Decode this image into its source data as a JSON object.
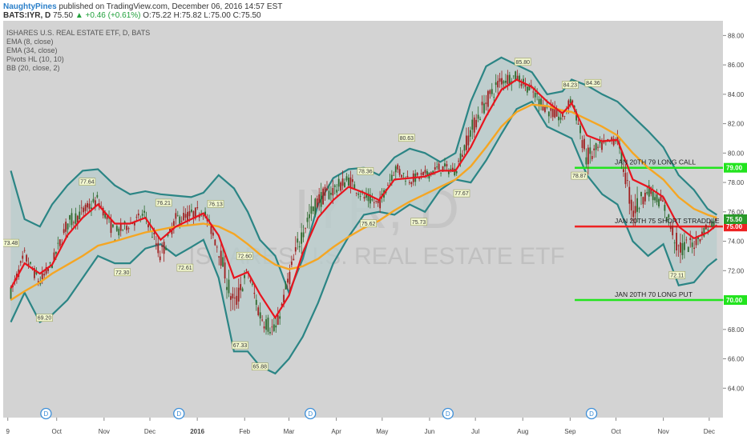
{
  "header": {
    "author": "NaughtyPines",
    "published": "published on TradingView.com, December 06, 2016 14:57 EST",
    "symbol": "BATS:IYR, D",
    "last": "75.50",
    "change": "▲ +0.46 (+0.61%)",
    "ohlc": "O:75.22 H:75.82 L:75.00 C:75.50"
  },
  "legend": {
    "title": "ISHARES U.S. REAL ESTATE ETF, D, BATS",
    "lines": [
      "EMA (8, close)",
      "EMA (34, close)",
      "Pivots HL (10, 10)",
      "BB (20, close, 2)"
    ]
  },
  "watermark": {
    "symbol": "IYR, D",
    "name": "ISHARES U.S. REAL ESTATE ETF"
  },
  "colors": {
    "plot_bg": "#d3d3d3",
    "bb_band": "#2b8585",
    "bb_fill": "#b8cccc",
    "ema8": "#e8141e",
    "ema34": "#f5a623",
    "candle_up": "#2f6b2f",
    "candle_down": "#a02020",
    "level_green": "#22e41e",
    "level_red": "#ee2222",
    "pivot_fill": "#f2f7d0",
    "event_marker": "#3d8fd8"
  },
  "chart_data": {
    "type": "candlestick",
    "ylim": [
      62,
      89
    ],
    "y_ticks": [
      "88.00",
      "86.00",
      "84.00",
      "82.00",
      "80.00",
      "78.00",
      "76.00",
      "74.00",
      "72.00",
      "70.00",
      "68.00",
      "66.00",
      "64.00"
    ],
    "x_ticks": [
      "9",
      "Oct",
      "Nov",
      "Dec",
      "2016",
      "Feb",
      "Mar",
      "Apr",
      "May",
      "Jun",
      "Jul",
      "Aug",
      "Sep",
      "Oct",
      "Nov",
      "Dec"
    ],
    "close_path": {
      "x": [
        "2015-09-01",
        "2015-09-10",
        "2015-09-20",
        "2015-09-28",
        "2015-10-08",
        "2015-10-18",
        "2015-10-28",
        "2015-11-08",
        "2015-11-18",
        "2015-11-28",
        "2015-12-08",
        "2015-12-18",
        "2015-12-28",
        "2016-01-05",
        "2016-01-15",
        "2016-01-25",
        "2016-02-03",
        "2016-02-11",
        "2016-02-21",
        "2016-03-01",
        "2016-03-10",
        "2016-03-20",
        "2016-03-30",
        "2016-04-09",
        "2016-04-19",
        "2016-04-29",
        "2016-05-09",
        "2016-05-19",
        "2016-05-29",
        "2016-06-08",
        "2016-06-18",
        "2016-06-28",
        "2016-07-08",
        "2016-07-18",
        "2016-07-28",
        "2016-08-07",
        "2016-08-17",
        "2016-08-27",
        "2016-09-02",
        "2016-09-12",
        "2016-09-22",
        "2016-10-02",
        "2016-10-12",
        "2016-10-22",
        "2016-11-01",
        "2016-11-11",
        "2016-11-21",
        "2016-11-30",
        "2016-12-06"
      ],
      "y": [
        70.5,
        73.0,
        71.2,
        72.5,
        75.2,
        76.0,
        76.8,
        74.5,
        75.2,
        75.8,
        73.0,
        75.5,
        75.8,
        76.1,
        73.5,
        69.5,
        72.0,
        69.0,
        67.8,
        71.5,
        74.8,
        76.8,
        77.5,
        78.2,
        77.0,
        76.5,
        79.0,
        78.2,
        78.5,
        79.0,
        78.8,
        81.5,
        83.5,
        85.0,
        85.2,
        84.2,
        83.0,
        82.3,
        83.8,
        79.6,
        80.5,
        81.0,
        76.0,
        77.5,
        76.5,
        73.5,
        73.8,
        75.0,
        75.5
      ]
    },
    "candle_ranges": [
      {
        "from": "2015-09-01",
        "to": "2015-09-28",
        "low": 69.5,
        "high": 74.0
      },
      {
        "from": "2015-10-01",
        "to": "2015-10-31",
        "low": 71.5,
        "high": 77.6
      },
      {
        "from": "2015-11-01",
        "to": "2015-11-30",
        "low": 72.3,
        "high": 76.5
      },
      {
        "from": "2015-12-01",
        "to": "2015-12-31",
        "low": 72.6,
        "high": 76.5
      },
      {
        "from": "2016-01-01",
        "to": "2016-01-31",
        "low": 68.5,
        "high": 76.1
      },
      {
        "from": "2016-02-01",
        "to": "2016-02-29",
        "low": 65.9,
        "high": 72.5
      },
      {
        "from": "2016-03-01",
        "to": "2016-03-31",
        "low": 70.0,
        "high": 78.0
      },
      {
        "from": "2016-04-01",
        "to": "2016-04-30",
        "low": 75.6,
        "high": 79.0
      },
      {
        "from": "2016-05-01",
        "to": "2016-05-31",
        "low": 75.7,
        "high": 80.6
      },
      {
        "from": "2016-06-01",
        "to": "2016-06-30",
        "low": 77.6,
        "high": 81.5
      },
      {
        "from": "2016-07-01",
        "to": "2016-07-31",
        "low": 80.5,
        "high": 85.8
      },
      {
        "from": "2016-08-01",
        "to": "2016-08-31",
        "low": 81.8,
        "high": 85.2
      },
      {
        "from": "2016-09-01",
        "to": "2016-09-30",
        "low": 78.9,
        "high": 84.3
      },
      {
        "from": "2016-10-01",
        "to": "2016-10-31",
        "low": 75.0,
        "high": 81.5
      },
      {
        "from": "2016-11-01",
        "to": "2016-11-30",
        "low": 72.1,
        "high": 76.8
      },
      {
        "from": "2016-12-01",
        "to": "2016-12-06",
        "low": 74.3,
        "high": 75.8
      }
    ],
    "ema8": [
      70.8,
      72.5,
      71.8,
      72.4,
      74.4,
      75.6,
      76.5,
      75.2,
      75.2,
      75.6,
      74.1,
      75.0,
      75.5,
      75.9,
      74.4,
      71.5,
      71.9,
      70.4,
      68.8,
      70.3,
      73.2,
      75.6,
      76.8,
      77.7,
      77.3,
      76.8,
      78.2,
      78.3,
      78.4,
      78.8,
      78.8,
      80.4,
      82.5,
      84.3,
      85.0,
      84.5,
      83.5,
      82.7,
      83.4,
      81.2,
      80.8,
      80.9,
      78.2,
      77.7,
      77.0,
      75.0,
      74.2,
      74.6,
      75.1
    ],
    "ema34": [
      70.0,
      70.6,
      71.2,
      71.8,
      72.4,
      73.0,
      73.7,
      74.0,
      74.3,
      74.6,
      74.8,
      75.0,
      75.1,
      75.2,
      75.0,
      74.5,
      73.8,
      73.1,
      72.4,
      72.1,
      72.3,
      72.8,
      73.6,
      74.3,
      74.9,
      75.4,
      76.1,
      76.7,
      77.2,
      77.7,
      78.2,
      79.1,
      80.4,
      81.8,
      82.8,
      83.3,
      83.2,
      82.9,
      82.8,
      82.3,
      81.8,
      81.2,
      80.0,
      79.0,
      78.2,
      77.0,
      76.2,
      75.8,
      75.6
    ],
    "bb_upper": [
      78.8,
      75.5,
      75.0,
      76.5,
      77.8,
      78.8,
      78.9,
      77.8,
      77.2,
      77.4,
      77.2,
      77.1,
      77.0,
      77.3,
      78.5,
      77.6,
      76.0,
      74.1,
      73.0,
      70.5,
      72.8,
      76.5,
      78.3,
      78.9,
      79.0,
      78.5,
      79.7,
      80.3,
      80.0,
      79.4,
      80.0,
      83.5,
      85.9,
      86.5,
      86.0,
      85.5,
      84.0,
      84.2,
      85.0,
      84.6,
      84.0,
      83.5,
      82.5,
      81.5,
      80.4,
      78.5,
      77.5,
      76.2,
      75.8
    ],
    "bb_lower": [
      68.5,
      70.5,
      68.5,
      69.0,
      70.0,
      71.5,
      73.0,
      72.5,
      72.5,
      73.5,
      73.8,
      73.0,
      73.6,
      74.1,
      71.5,
      66.5,
      66.5,
      65.5,
      65.0,
      66.0,
      67.5,
      69.8,
      72.5,
      74.3,
      75.8,
      76.0,
      75.8,
      76.5,
      76.0,
      77.5,
      78.2,
      78.0,
      79.5,
      81.3,
      83.0,
      83.5,
      81.8,
      81.3,
      81.0,
      78.5,
      77.2,
      76.5,
      74.0,
      73.0,
      73.8,
      71.0,
      71.2,
      72.3,
      72.8
    ],
    "pivots": [
      {
        "date": "2015-09-01",
        "value": 73.48,
        "label": "73.48",
        "position": "above"
      },
      {
        "date": "2015-09-23",
        "value": 69.2,
        "label": "69.20",
        "position": "below"
      },
      {
        "date": "2015-10-21",
        "value": 77.64,
        "label": "77.64",
        "position": "above"
      },
      {
        "date": "2015-11-13",
        "value": 72.3,
        "label": "72.30",
        "position": "below"
      },
      {
        "date": "2015-12-10",
        "value": 76.21,
        "label": "76.21",
        "position": "above"
      },
      {
        "date": "2015-12-24",
        "value": 72.61,
        "label": "72.61",
        "position": "below"
      },
      {
        "date": "2016-01-13",
        "value": 76.13,
        "label": "76.13",
        "position": "above"
      },
      {
        "date": "2016-02-01",
        "value": 72.6,
        "label": "72.60",
        "position": "above"
      },
      {
        "date": "2016-01-29",
        "value": 67.33,
        "label": "67.33",
        "position": "below"
      },
      {
        "date": "2016-02-11",
        "value": 65.88,
        "label": "65.88",
        "position": "below"
      },
      {
        "date": "2016-04-20",
        "value": 78.36,
        "label": "78.36",
        "position": "above"
      },
      {
        "date": "2016-04-22",
        "value": 75.62,
        "label": "75.62",
        "position": "below"
      },
      {
        "date": "2016-05-17",
        "value": 80.63,
        "label": "80.63",
        "position": "above"
      },
      {
        "date": "2016-05-25",
        "value": 75.73,
        "label": "75.73",
        "position": "below"
      },
      {
        "date": "2016-06-22",
        "value": 77.67,
        "label": "77.67",
        "position": "below"
      },
      {
        "date": "2016-08-01",
        "value": 85.8,
        "label": "85.80",
        "position": "above"
      },
      {
        "date": "2016-09-01",
        "value": 84.23,
        "label": "84.23",
        "position": "above"
      },
      {
        "date": "2016-09-07",
        "value": 78.87,
        "label": "78.87",
        "position": "below"
      },
      {
        "date": "2016-09-16",
        "value": 84.36,
        "label": "84.36",
        "position": "above"
      },
      {
        "date": "2016-11-10",
        "value": 72.11,
        "label": "72.11",
        "position": "below"
      }
    ],
    "levels": [
      {
        "value": 79.0,
        "label": "79.00",
        "color": "#22e41e",
        "from": "2016-09-04",
        "text": "JAN 20TH 79 LONG CALL"
      },
      {
        "value": 75.0,
        "label": "75.00",
        "color": "#ee2222",
        "from": "2016-09-04",
        "text": "JAN 20TH 75 SHORT STRADDLE"
      },
      {
        "value": 70.0,
        "label": "70.00",
        "color": "#22e41e",
        "from": "2016-09-04",
        "text": "JAN 20TH 70 LONG PUT"
      }
    ],
    "last_price": {
      "value": 75.5,
      "label": "75.50",
      "color": "#2a9a2a"
    },
    "event_markers": {
      "label": "D",
      "dates": [
        "2015-09-24",
        "2015-12-20",
        "2016-03-15",
        "2016-06-13",
        "2016-09-15"
      ]
    }
  }
}
